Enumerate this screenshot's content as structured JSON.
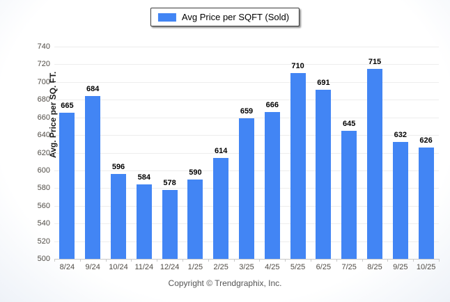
{
  "chart_data": {
    "type": "bar",
    "title": "",
    "legend": "Avg Price per SQFT (Sold)",
    "xlabel": "",
    "ylabel": "Avg. Price per SQ. FT.",
    "categories": [
      "8/24",
      "9/24",
      "10/24",
      "11/24",
      "12/24",
      "1/25",
      "2/25",
      "3/25",
      "4/25",
      "5/25",
      "6/25",
      "7/25",
      "8/25",
      "9/25",
      "10/25"
    ],
    "values": [
      665,
      684,
      596,
      584,
      578,
      590,
      614,
      659,
      666,
      710,
      691,
      645,
      715,
      632,
      626
    ],
    "ylim": [
      500,
      740
    ],
    "ytick_step": 20,
    "grid": true,
    "legend_position": "top",
    "bar_color": "#4285F4"
  },
  "footer": {
    "copyright": "Copyright © Trendgraphix, Inc."
  },
  "colors": {
    "bar": "#4285F4",
    "gridline": "#ededed",
    "axis": "#c8c8c8",
    "tick_label": "#4f4b45",
    "value_label": "#000000",
    "footer": "#555555"
  }
}
